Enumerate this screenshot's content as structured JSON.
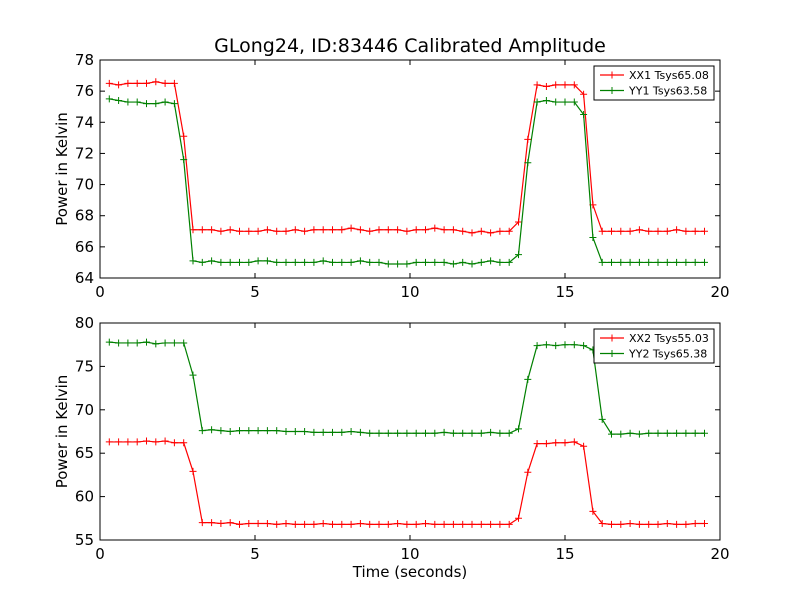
{
  "figure_title": "GLong24, ID:83446 Calibrated Amplitude",
  "chart_data": [
    {
      "type": "line",
      "title": "GLong24, ID:83446 Calibrated Amplitude",
      "xlabel": "",
      "ylabel": "Power in Kelvin",
      "xlim": [
        0,
        20
      ],
      "ylim": [
        64,
        78
      ],
      "xticks": [
        0,
        5,
        10,
        15,
        20
      ],
      "yticks": [
        64,
        66,
        68,
        70,
        72,
        74,
        76,
        78
      ],
      "grid": false,
      "legend_position": "top-right",
      "x": [
        0.3,
        0.6,
        0.9,
        1.2,
        1.5,
        1.8,
        2.1,
        2.4,
        2.7,
        3.0,
        3.3,
        3.6,
        3.9,
        4.2,
        4.5,
        4.8,
        5.1,
        5.4,
        5.7,
        6.0,
        6.3,
        6.6,
        6.9,
        7.2,
        7.5,
        7.8,
        8.1,
        8.4,
        8.7,
        9.0,
        9.3,
        9.6,
        9.9,
        10.2,
        10.5,
        10.8,
        11.1,
        11.4,
        11.7,
        12.0,
        12.3,
        12.6,
        12.9,
        13.2,
        13.5,
        13.8,
        14.1,
        14.4,
        14.7,
        15.0,
        15.3,
        15.6,
        15.9,
        16.2,
        16.5,
        16.8,
        17.1,
        17.4,
        17.7,
        18.0,
        18.3,
        18.6,
        18.9,
        19.2,
        19.5
      ],
      "series": [
        {
          "name": "XX1 Tsys65.08",
          "color": "#ff0000",
          "values": [
            76.5,
            76.4,
            76.5,
            76.5,
            76.5,
            76.6,
            76.5,
            76.5,
            73.1,
            67.1,
            67.1,
            67.1,
            67.0,
            67.1,
            67.0,
            67.0,
            67.0,
            67.1,
            67.0,
            67.0,
            67.1,
            67.0,
            67.1,
            67.1,
            67.1,
            67.1,
            67.2,
            67.1,
            67.0,
            67.1,
            67.1,
            67.1,
            67.0,
            67.1,
            67.1,
            67.2,
            67.1,
            67.1,
            67.0,
            66.9,
            67.0,
            66.9,
            67.0,
            67.0,
            67.6,
            72.9,
            76.4,
            76.3,
            76.4,
            76.4,
            76.4,
            75.8,
            68.7,
            67.0,
            67.0,
            67.0,
            67.0,
            67.1,
            67.0,
            67.0,
            67.0,
            67.1,
            67.0,
            67.0,
            67.0
          ]
        },
        {
          "name": "YY1 Tsys63.58",
          "color": "#008000",
          "values": [
            75.5,
            75.4,
            75.3,
            75.3,
            75.2,
            75.2,
            75.3,
            75.2,
            71.6,
            65.1,
            65.0,
            65.1,
            65.0,
            65.0,
            65.0,
            65.0,
            65.1,
            65.1,
            65.0,
            65.0,
            65.0,
            65.0,
            65.0,
            65.1,
            65.0,
            65.0,
            65.0,
            65.1,
            65.0,
            65.0,
            64.9,
            64.9,
            64.9,
            65.0,
            65.0,
            65.0,
            65.0,
            64.9,
            65.0,
            64.9,
            65.0,
            65.1,
            65.0,
            65.0,
            65.5,
            71.4,
            75.3,
            75.4,
            75.3,
            75.3,
            75.3,
            74.5,
            66.6,
            65.0,
            65.0,
            65.0,
            65.0,
            65.0,
            65.0,
            65.0,
            65.0,
            65.0,
            65.0,
            65.0,
            65.0
          ]
        }
      ]
    },
    {
      "type": "line",
      "title": "",
      "xlabel": "Time (seconds)",
      "ylabel": "Power in Kelvin",
      "xlim": [
        0,
        20
      ],
      "ylim": [
        55,
        80
      ],
      "xticks": [
        0,
        5,
        10,
        15,
        20
      ],
      "yticks": [
        55,
        60,
        65,
        70,
        75,
        80
      ],
      "grid": false,
      "legend_position": "top-right",
      "x": [
        0.3,
        0.6,
        0.9,
        1.2,
        1.5,
        1.8,
        2.1,
        2.4,
        2.7,
        3.0,
        3.3,
        3.6,
        3.9,
        4.2,
        4.5,
        4.8,
        5.1,
        5.4,
        5.7,
        6.0,
        6.3,
        6.6,
        6.9,
        7.2,
        7.5,
        7.8,
        8.1,
        8.4,
        8.7,
        9.0,
        9.3,
        9.6,
        9.9,
        10.2,
        10.5,
        10.8,
        11.1,
        11.4,
        11.7,
        12.0,
        12.3,
        12.6,
        12.9,
        13.2,
        13.5,
        13.8,
        14.1,
        14.4,
        14.7,
        15.0,
        15.3,
        15.6,
        15.9,
        16.2,
        16.5,
        16.8,
        17.1,
        17.4,
        17.7,
        18.0,
        18.3,
        18.6,
        18.9,
        19.2,
        19.5
      ],
      "series": [
        {
          "name": "XX2 Tsys55.03",
          "color": "#ff0000",
          "values": [
            66.3,
            66.3,
            66.3,
            66.3,
            66.4,
            66.3,
            66.4,
            66.2,
            66.2,
            62.9,
            57.0,
            57.0,
            56.9,
            57.0,
            56.8,
            56.9,
            56.9,
            56.9,
            56.8,
            56.9,
            56.8,
            56.8,
            56.8,
            56.9,
            56.8,
            56.8,
            56.8,
            56.9,
            56.8,
            56.8,
            56.8,
            56.9,
            56.8,
            56.8,
            56.9,
            56.8,
            56.8,
            56.8,
            56.8,
            56.8,
            56.8,
            56.8,
            56.8,
            56.8,
            57.5,
            62.8,
            66.1,
            66.1,
            66.2,
            66.2,
            66.3,
            65.8,
            58.3,
            56.9,
            56.8,
            56.8,
            56.9,
            56.8,
            56.8,
            56.8,
            56.9,
            56.8,
            56.8,
            56.9,
            56.9
          ]
        },
        {
          "name": "YY2 Tsys65.38",
          "color": "#008000",
          "values": [
            77.8,
            77.7,
            77.7,
            77.7,
            77.8,
            77.6,
            77.7,
            77.7,
            77.7,
            74.0,
            67.6,
            67.7,
            67.6,
            67.5,
            67.6,
            67.6,
            67.6,
            67.6,
            67.6,
            67.5,
            67.5,
            67.5,
            67.4,
            67.4,
            67.4,
            67.4,
            67.5,
            67.4,
            67.3,
            67.3,
            67.3,
            67.3,
            67.3,
            67.3,
            67.3,
            67.3,
            67.4,
            67.3,
            67.3,
            67.3,
            67.3,
            67.4,
            67.3,
            67.3,
            67.8,
            73.5,
            77.4,
            77.5,
            77.4,
            77.5,
            77.5,
            77.4,
            76.9,
            68.9,
            67.2,
            67.2,
            67.3,
            67.2,
            67.3,
            67.3,
            67.3,
            67.3,
            67.3,
            67.3,
            67.3
          ]
        }
      ]
    }
  ]
}
